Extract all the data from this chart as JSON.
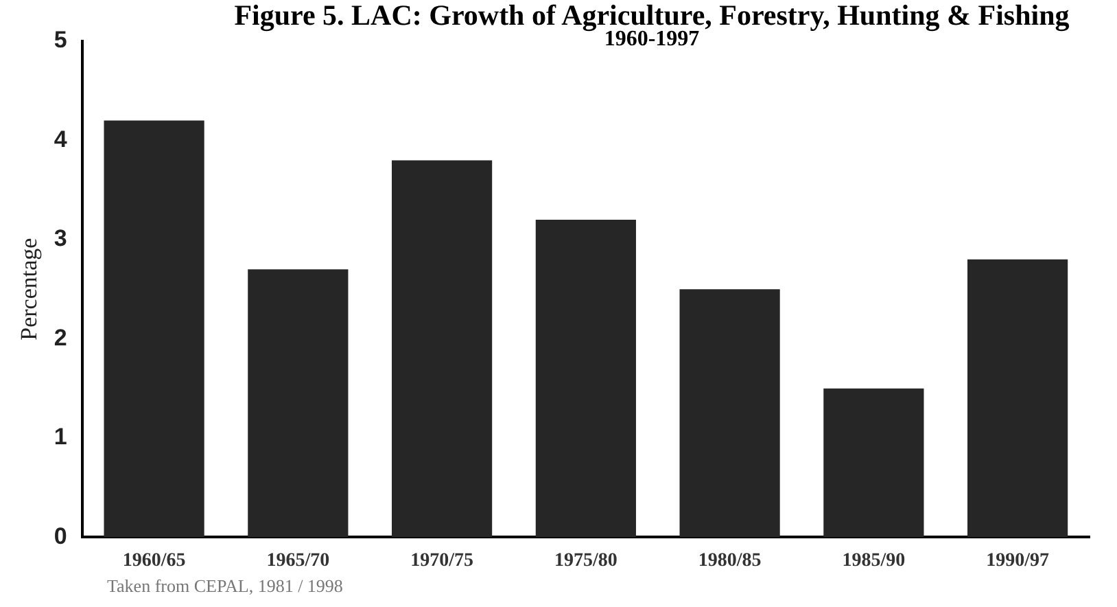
{
  "chart_data": {
    "type": "bar",
    "title": "Figure 5.  LAC: Growth of Agriculture, Forestry, Hunting & Fishing",
    "subtitle": "1960-1997",
    "ylabel": "Percentage",
    "categories": [
      "1960/65",
      "1965/70",
      "1970/75",
      "1975/80",
      "1980/85",
      "1985/90",
      "1990/97"
    ],
    "values": [
      4.2,
      2.7,
      3.8,
      3.2,
      2.5,
      1.5,
      2.8
    ],
    "color": "#262626",
    "ylim": [
      0,
      5
    ],
    "yticks": [
      0,
      1,
      2,
      3,
      4,
      5
    ],
    "grid": false,
    "legend": false,
    "annotations": [
      "Taken from CEPAL, 1981 / 1998"
    ]
  }
}
